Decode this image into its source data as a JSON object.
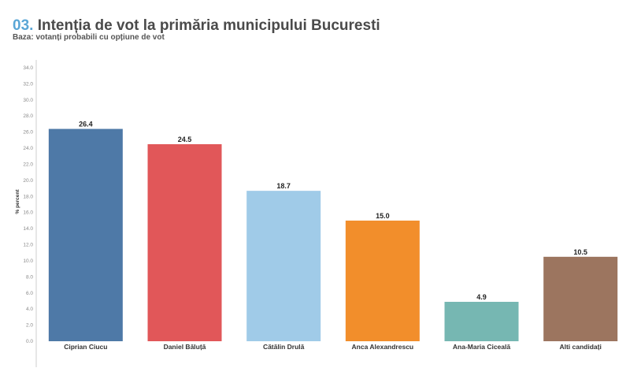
{
  "header": {
    "number": "03.",
    "title": "Intenția de vot la primăria municipului Bucuresti",
    "subtitle": "Baza: votanți probabili cu opțiune de vot"
  },
  "chart_data": {
    "type": "bar",
    "categories": [
      "Ciprian Ciucu",
      "Daniel Băluță",
      "Cătălin Drulă",
      "Anca Alexandrescu",
      "Ana-Maria Ciceală",
      "Alti candidați"
    ],
    "values": [
      26.4,
      24.5,
      18.7,
      15.0,
      4.9,
      10.5
    ],
    "value_labels": [
      "26.4",
      "24.5",
      "18.7",
      "15.0",
      "4.9",
      "10.5"
    ],
    "colors": [
      "#4e79a7",
      "#e15759",
      "#a0cbe8",
      "#f28e2b",
      "#76b7b2",
      "#9c755f"
    ],
    "ylabel": "% percent",
    "ylim": [
      0,
      34
    ],
    "yticks": [
      "0.0",
      "2.0",
      "4.0",
      "6.0",
      "8.0",
      "10.0",
      "12.0",
      "14.0",
      "16.0",
      "18.0",
      "20.0",
      "22.0",
      "24.0",
      "26.0",
      "28.0",
      "30.0",
      "32.0",
      "34.0"
    ],
    "grid": false,
    "legend": "none"
  }
}
